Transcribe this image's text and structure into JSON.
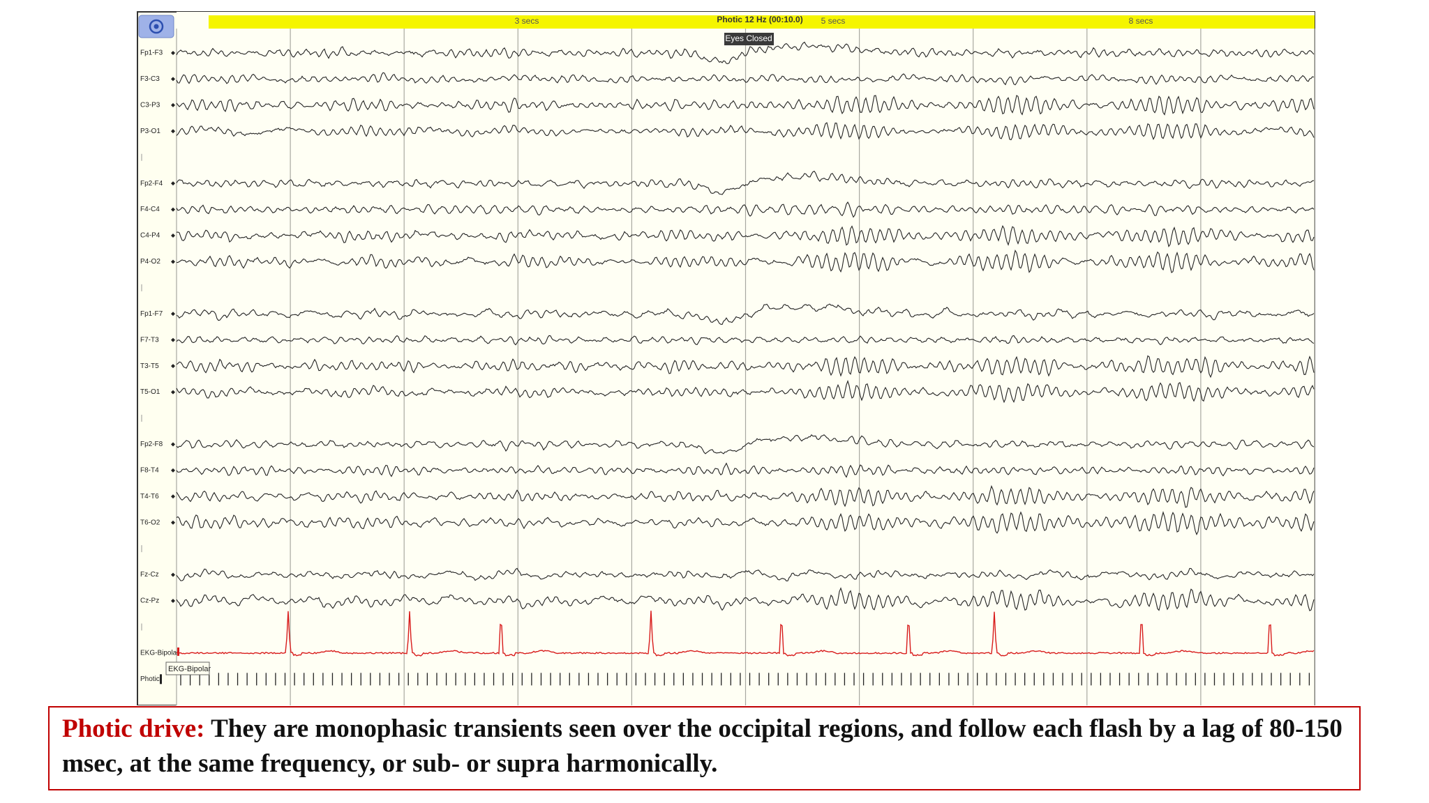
{
  "toolbar": {
    "photic_label": "Photic 12 Hz (00:10.0)",
    "time_labels": [
      "3 secs",
      "5 secs",
      "8 secs"
    ]
  },
  "annotation": "Eyes Closed",
  "tooltip": "EKG-Bipolar",
  "channels": [
    "Fp1-F3",
    "F3-C3",
    "C3-P3",
    "P3-O1",
    "Fp2-F4",
    "F4-C4",
    "C4-P4",
    "P4-O2",
    "Fp1-F7",
    "F7-T3",
    "T3-T5",
    "T5-O1",
    "Fp2-F8",
    "F8-T4",
    "T4-T6",
    "T6-O2",
    "Fz-Cz",
    "Cz-Pz",
    "EKG-Bipolar",
    "Photic"
  ],
  "caption": {
    "lead": "Photic drive:",
    "text": "They are monophasic transients seen over the occipital regions, and follow each flash by a lag of 80-150 msec, at the same frequency, or sub- or supra harmonically."
  }
}
